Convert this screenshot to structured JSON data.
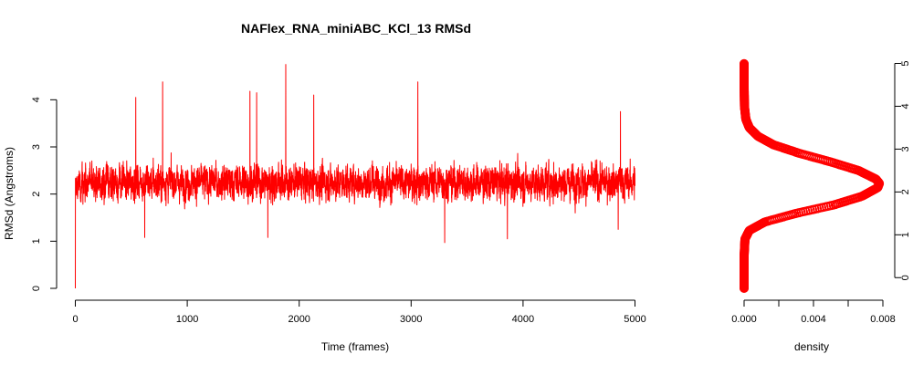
{
  "chart_data": [
    {
      "type": "line",
      "title": "NAFlex_RNA_miniABC_KCl_13 RMSd",
      "xlabel": "Time (frames)",
      "ylabel": "RMSd (Angstroms)",
      "xlim": [
        0,
        5000
      ],
      "ylim": [
        0,
        4.8
      ],
      "xticks": [
        "0",
        "1000",
        "2000",
        "3000",
        "4000",
        "5000"
      ],
      "yticks": [
        "0",
        "1",
        "2",
        "3",
        "4"
      ],
      "color": "#ff0000",
      "summary": {
        "n_frames": 5000,
        "start_value": 0.0,
        "typical_center": 2.25,
        "typical_low": 1.5,
        "typical_high": 3.1,
        "min": 0.97,
        "max": 4.75
      },
      "peaks": [
        {
          "x": 540,
          "y": 4.05
        },
        {
          "x": 780,
          "y": 4.38
        },
        {
          "x": 1560,
          "y": 4.18
        },
        {
          "x": 1620,
          "y": 4.15
        },
        {
          "x": 1880,
          "y": 4.75
        },
        {
          "x": 2130,
          "y": 4.1
        },
        {
          "x": 3060,
          "y": 4.38
        },
        {
          "x": 4870,
          "y": 3.75
        }
      ],
      "troughs": [
        {
          "x": 620,
          "y": 1.08
        },
        {
          "x": 1720,
          "y": 1.08
        },
        {
          "x": 3300,
          "y": 0.97
        },
        {
          "x": 3860,
          "y": 1.05
        },
        {
          "x": 4850,
          "y": 1.25
        }
      ],
      "grid": false
    },
    {
      "type": "line",
      "title": "",
      "xlabel": "density",
      "ylabel": "",
      "xlim": [
        0,
        0.008
      ],
      "ylim": [
        -0.25,
        5
      ],
      "xticks": [
        "0.000",
        "0.004",
        "0.008"
      ],
      "yticks": [
        "0",
        "1",
        "2",
        "3",
        "4",
        "5"
      ],
      "y_axis_position": "right",
      "color": "#ff0000",
      "curve": {
        "rmsd": [
          -0.25,
          0.5,
          0.9,
          1.1,
          1.3,
          1.5,
          1.7,
          1.9,
          2.1,
          2.2,
          2.3,
          2.5,
          2.7,
          2.9,
          3.1,
          3.3,
          3.5,
          3.7,
          4.0,
          4.5,
          5.0
        ],
        "density": [
          0.0,
          0.0,
          5e-05,
          0.0003,
          0.0012,
          0.003,
          0.0052,
          0.0068,
          0.0077,
          0.0078,
          0.0076,
          0.0066,
          0.005,
          0.0032,
          0.0017,
          0.0008,
          0.0003,
          0.0001,
          2e-05,
          0.0,
          0.0
        ]
      },
      "grid": false
    }
  ]
}
